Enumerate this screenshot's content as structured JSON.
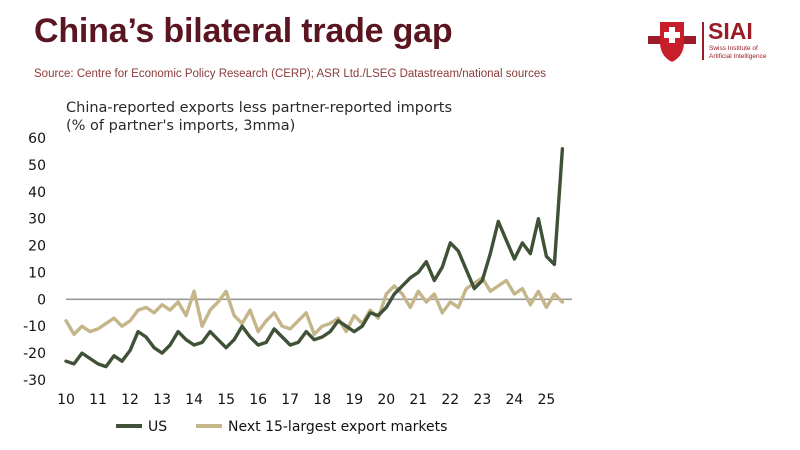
{
  "header": {
    "title": "China’s bilateral trade gap",
    "source": "Source: Centre for Economic Policy Research (CERP); ASR Ltd./LSEG Datastream/national sources"
  },
  "logo": {
    "name": "SIAI",
    "subtitle": "Swiss Institute of Artificial Intelligence",
    "brand_color": "#9b1b26"
  },
  "chart_data": {
    "type": "line",
    "title_lines": [
      "China-reported exports less partner-reported imports",
      "(% of partner's imports, 3mma)"
    ],
    "xlabel": "",
    "ylabel": "",
    "xlim": [
      2010,
      2025.8
    ],
    "ylim": [
      -30,
      60
    ],
    "x_ticks": [
      {
        "value": 2010,
        "label": "10"
      },
      {
        "value": 2011,
        "label": "11"
      },
      {
        "value": 2012,
        "label": "12"
      },
      {
        "value": 2013,
        "label": "13"
      },
      {
        "value": 2014,
        "label": "14"
      },
      {
        "value": 2015,
        "label": "15"
      },
      {
        "value": 2016,
        "label": "16"
      },
      {
        "value": 2017,
        "label": "17"
      },
      {
        "value": 2018,
        "label": "18"
      },
      {
        "value": 2019,
        "label": "19"
      },
      {
        "value": 2020,
        "label": "20"
      },
      {
        "value": 2021,
        "label": "21"
      },
      {
        "value": 2022,
        "label": "22"
      },
      {
        "value": 2023,
        "label": "23"
      },
      {
        "value": 2024,
        "label": "24"
      },
      {
        "value": 2025,
        "label": "25"
      }
    ],
    "y_ticks": [
      {
        "value": 60,
        "label": "60"
      },
      {
        "value": 50,
        "label": "50"
      },
      {
        "value": 40,
        "label": "40"
      },
      {
        "value": 30,
        "label": "30"
      },
      {
        "value": 20,
        "label": "20"
      },
      {
        "value": 10,
        "label": "10"
      },
      {
        "value": 0,
        "label": "0"
      },
      {
        "value": -10,
        "label": "-10"
      },
      {
        "value": -20,
        "label": "-20"
      },
      {
        "value": -30,
        "label": "-30"
      }
    ],
    "zero_line": true,
    "grid": false,
    "legend_position": "bottom",
    "series": [
      {
        "name": "US",
        "color": "#3f5137",
        "x": [
          2010.0,
          2010.25,
          2010.5,
          2010.75,
          2011.0,
          2011.25,
          2011.5,
          2011.75,
          2012.0,
          2012.25,
          2012.5,
          2012.75,
          2013.0,
          2013.25,
          2013.5,
          2013.75,
          2014.0,
          2014.25,
          2014.5,
          2014.75,
          2015.0,
          2015.25,
          2015.5,
          2015.75,
          2016.0,
          2016.25,
          2016.5,
          2016.75,
          2017.0,
          2017.25,
          2017.5,
          2017.75,
          2018.0,
          2018.25,
          2018.5,
          2018.75,
          2019.0,
          2019.25,
          2019.5,
          2019.75,
          2020.0,
          2020.25,
          2020.5,
          2020.75,
          2021.0,
          2021.25,
          2021.5,
          2021.75,
          2022.0,
          2022.25,
          2022.5,
          2022.75,
          2023.0,
          2023.25,
          2023.5,
          2023.75,
          2024.0,
          2024.25,
          2024.5,
          2024.75,
          2025.0,
          2025.25,
          2025.5
        ],
        "values": [
          -23,
          -24,
          -20,
          -22,
          -24,
          -25,
          -21,
          -23,
          -19,
          -12,
          -14,
          -18,
          -20,
          -17,
          -12,
          -15,
          -17,
          -16,
          -12,
          -15,
          -18,
          -15,
          -10,
          -14,
          -17,
          -16,
          -11,
          -14,
          -17,
          -16,
          -12,
          -15,
          -14,
          -12,
          -8,
          -10,
          -12,
          -10,
          -5,
          -6,
          -3,
          2,
          5,
          8,
          10,
          14,
          7,
          12,
          21,
          18,
          11,
          4,
          7,
          17,
          29,
          22,
          15,
          21,
          17,
          30,
          16,
          13,
          56
        ]
      },
      {
        "name": "Next 15-largest export markets",
        "color": "#c4b58a",
        "x": [
          2010.0,
          2010.25,
          2010.5,
          2010.75,
          2011.0,
          2011.25,
          2011.5,
          2011.75,
          2012.0,
          2012.25,
          2012.5,
          2012.75,
          2013.0,
          2013.25,
          2013.5,
          2013.75,
          2014.0,
          2014.25,
          2014.5,
          2014.75,
          2015.0,
          2015.25,
          2015.5,
          2015.75,
          2016.0,
          2016.25,
          2016.5,
          2016.75,
          2017.0,
          2017.25,
          2017.5,
          2017.75,
          2018.0,
          2018.25,
          2018.5,
          2018.75,
          2019.0,
          2019.25,
          2019.5,
          2019.75,
          2020.0,
          2020.25,
          2020.5,
          2020.75,
          2021.0,
          2021.25,
          2021.5,
          2021.75,
          2022.0,
          2022.25,
          2022.5,
          2022.75,
          2023.0,
          2023.25,
          2023.5,
          2023.75,
          2024.0,
          2024.25,
          2024.5,
          2024.75,
          2025.0,
          2025.25,
          2025.5
        ],
        "values": [
          -8,
          -13,
          -10,
          -12,
          -11,
          -9,
          -7,
          -10,
          -8,
          -4,
          -3,
          -5,
          -2,
          -4,
          -1,
          -6,
          3,
          -10,
          -4,
          -1,
          3,
          -6,
          -9,
          -4,
          -12,
          -8,
          -5,
          -10,
          -11,
          -8,
          -5,
          -13,
          -10,
          -9,
          -7,
          -12,
          -6,
          -9,
          -4,
          -7,
          2,
          5,
          2,
          -3,
          3,
          -1,
          2,
          -5,
          -1,
          -3,
          4,
          6,
          8,
          3,
          5,
          7,
          2,
          4,
          -2,
          3,
          -3,
          2,
          -1
        ]
      }
    ]
  }
}
